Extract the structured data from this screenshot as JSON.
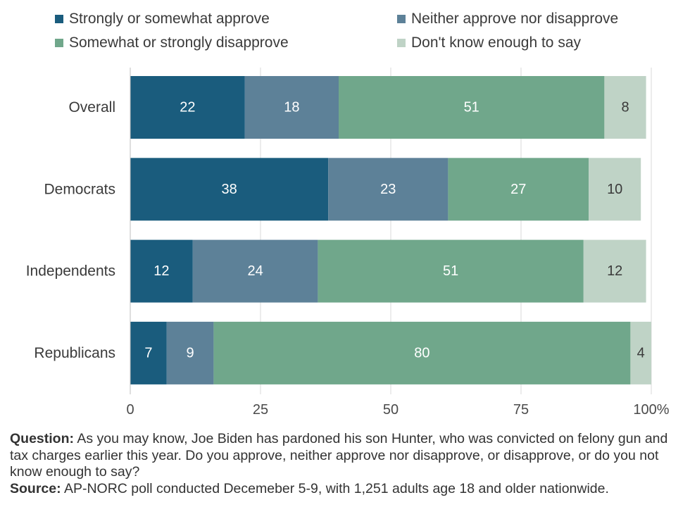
{
  "chart_data": {
    "type": "bar",
    "orientation": "horizontal",
    "stacked": true,
    "categories": [
      "Overall",
      "Democrats",
      "Independents",
      "Republicans"
    ],
    "series": [
      {
        "name": "Strongly or somewhat approve",
        "color": "#1a5c7d",
        "label_color": "#ffffff",
        "values": [
          22,
          38,
          12,
          7
        ]
      },
      {
        "name": "Neither approve nor disapprove",
        "color": "#5d8198",
        "label_color": "#ffffff",
        "values": [
          18,
          23,
          24,
          9
        ]
      },
      {
        "name": "Somewhat or strongly disapprove",
        "color": "#70a78b",
        "label_color": "#ffffff",
        "values": [
          51,
          27,
          51,
          80
        ]
      },
      {
        "name": "Don't know enough to say",
        "color": "#bfd3c6",
        "label_color": "#3a3a3a",
        "values": [
          8,
          10,
          12,
          4
        ]
      }
    ],
    "xlim": [
      0,
      100
    ],
    "x_ticks": [
      "0",
      "25",
      "50",
      "75",
      "100%"
    ],
    "x_tick_values": [
      0,
      25,
      50,
      75,
      100
    ],
    "grid": true,
    "legend_position": "top"
  },
  "notes": {
    "question_label": "Question:",
    "question_text": " As you may know, Joe Biden has pardoned his son Hunter, who was convicted on felony gun and tax charges earlier this year. Do you approve, neither approve nor disapprove, or disapprove, or do you not know enough to say?",
    "source_label": "Source:",
    "source_text": " AP-NORC poll conducted Decemeber 5-9, with 1,251 adults age 18 and older nationwide."
  }
}
